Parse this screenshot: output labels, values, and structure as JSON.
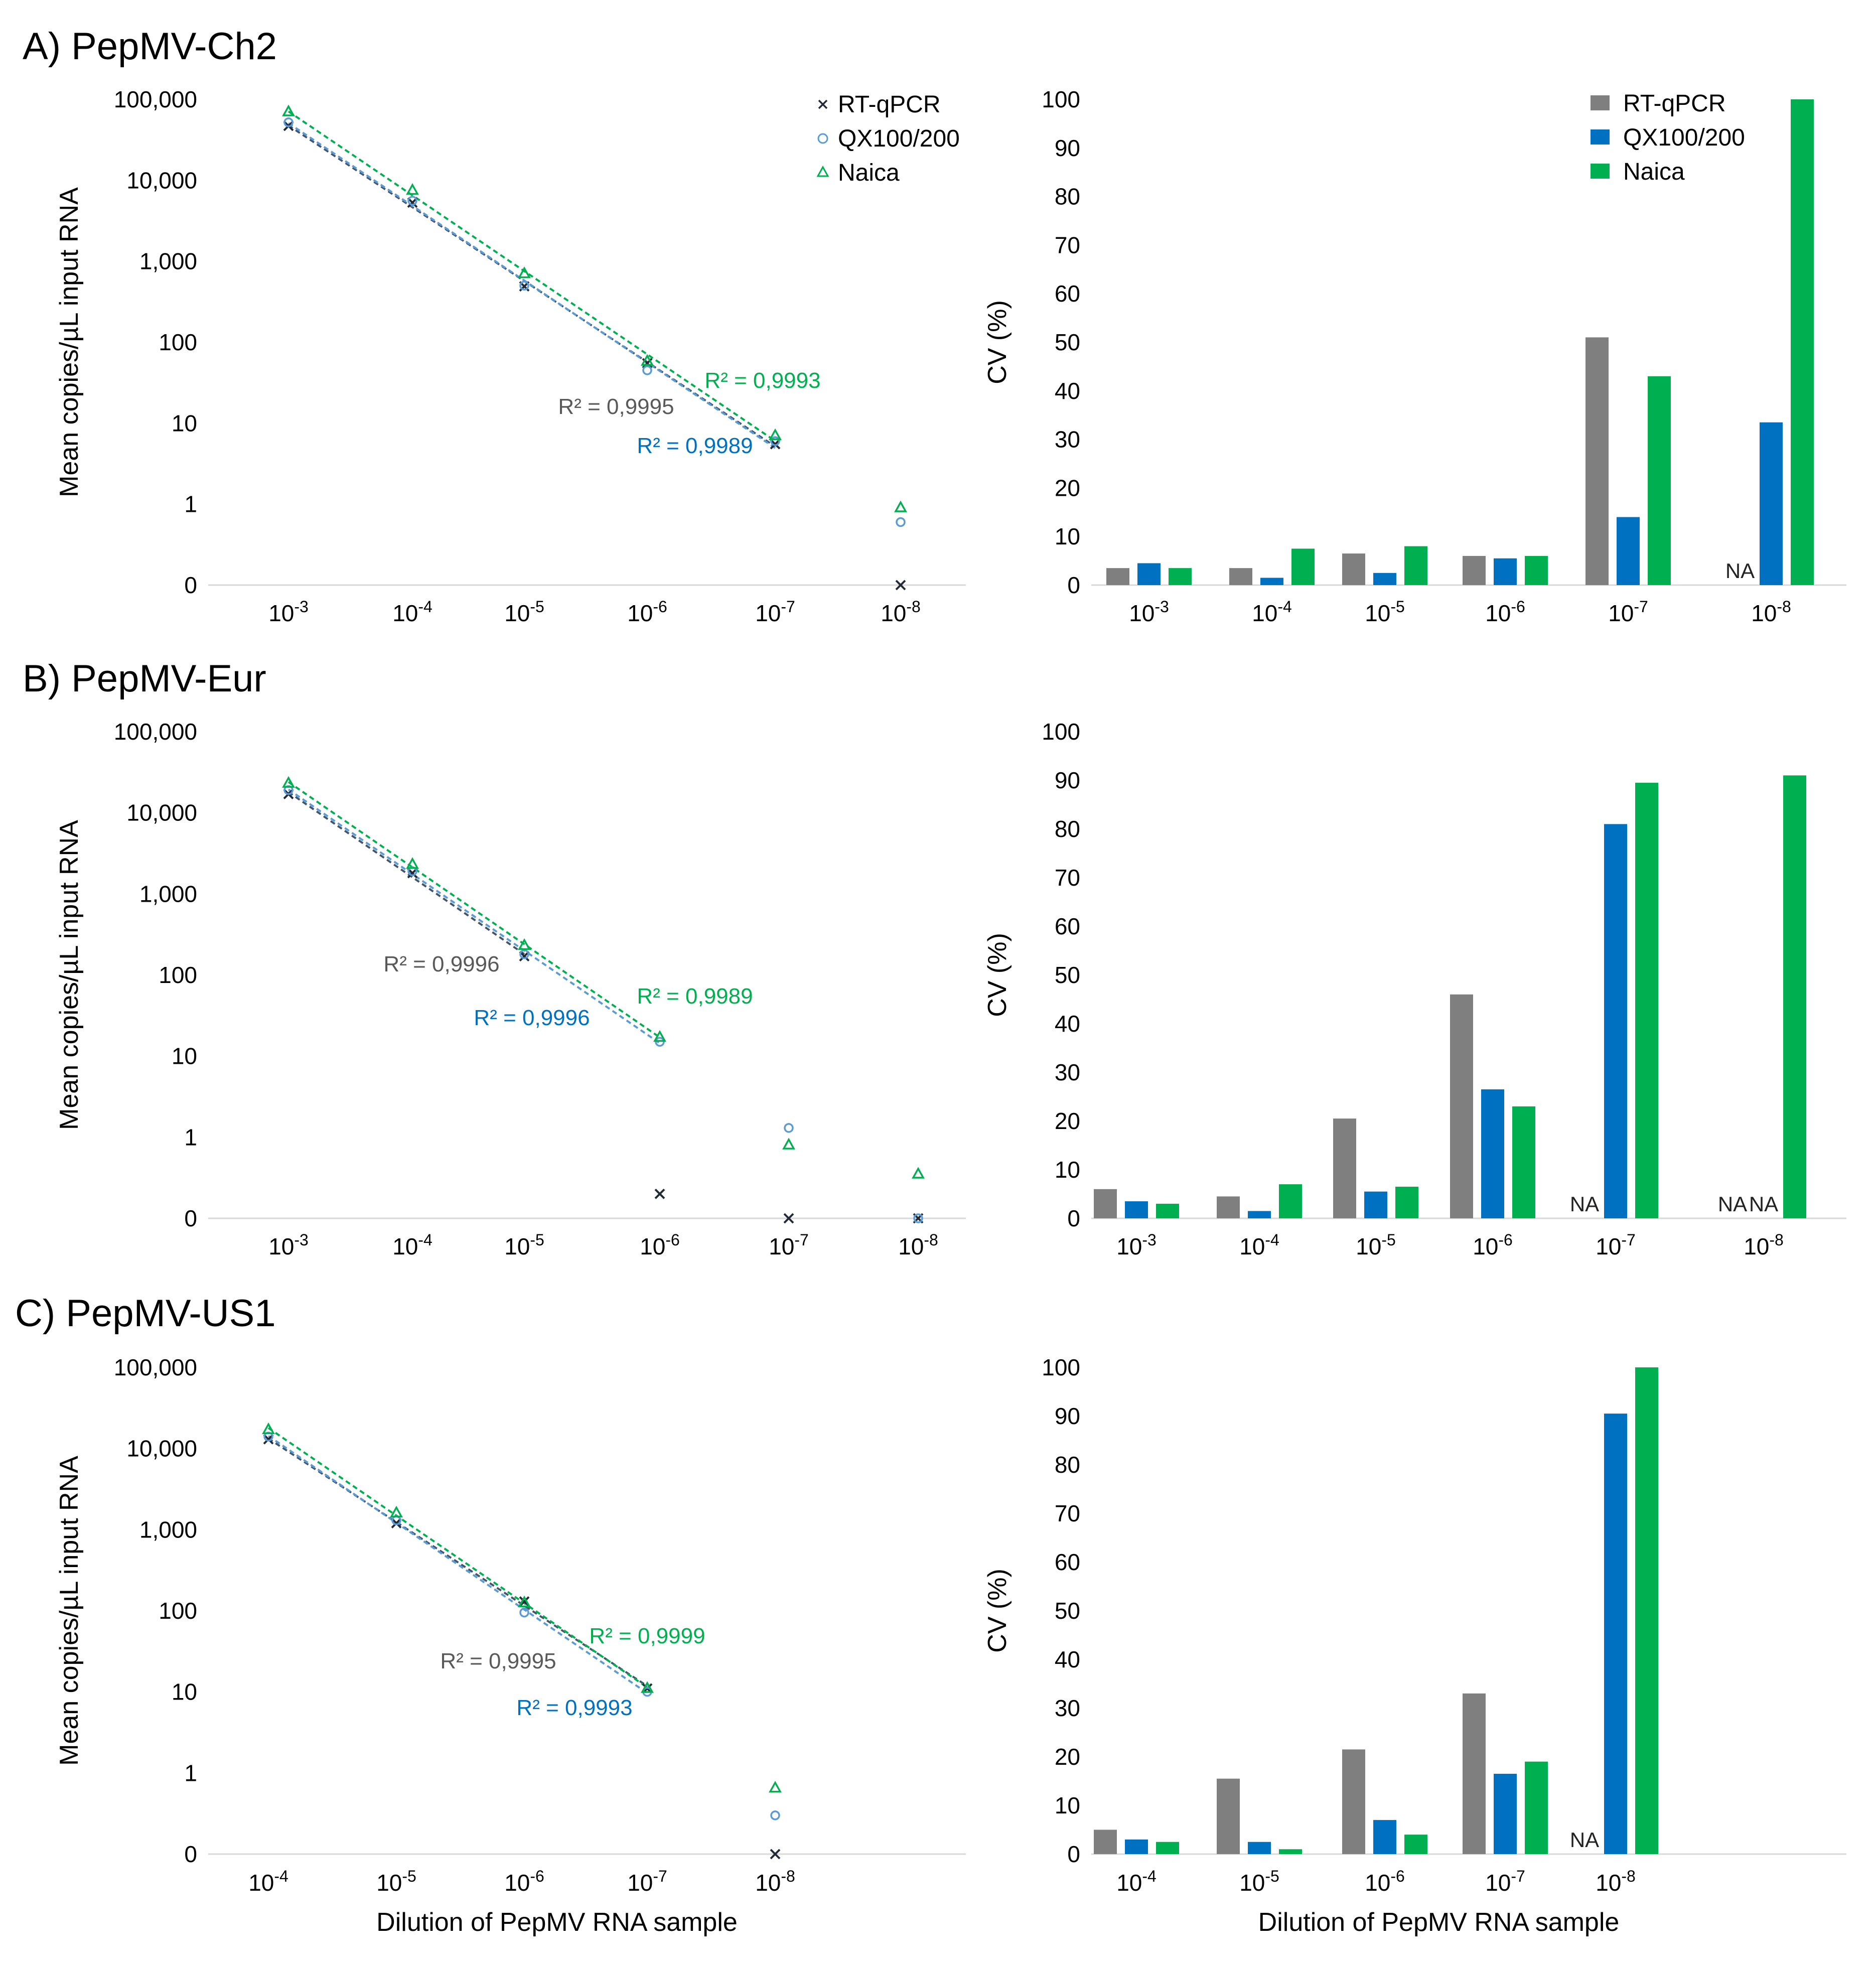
{
  "figure": {
    "xlabel": "Dilution of PepMV RNA sample",
    "legend": [
      {
        "name": "RT-qPCR",
        "color": "#7f7f7f"
      },
      {
        "name": "QX100/200",
        "color": "#0070c0"
      },
      {
        "name": "Naica",
        "color": "#00b050"
      }
    ]
  },
  "chart_data": [
    {
      "panel": "A) PepMV-Ch2",
      "type": "scatter",
      "yscale": "log",
      "ylabel": "Mean copies/µL input RNA",
      "yticks": [
        "100,000",
        "10,000",
        "1,000",
        "100",
        "10",
        "1",
        "0"
      ],
      "x": [
        "10-3",
        "10-4",
        "10-5",
        "10-6",
        "10-7",
        "10-8"
      ],
      "series": [
        {
          "name": "RT-qPCR",
          "marker": "x",
          "values": [
            47000,
            5300,
            490,
            55,
            5.5,
            0
          ]
        },
        {
          "name": "QX100/200",
          "marker": "o",
          "values": [
            52000,
            5600,
            500,
            45,
            6,
            0.6
          ]
        },
        {
          "name": "Naica",
          "marker": "triangle",
          "values": [
            70000,
            7500,
            700,
            58,
            7,
            0.9
          ]
        }
      ],
      "r2": [
        {
          "series": "RT-qPCR",
          "text": "R² = 0,9995"
        },
        {
          "series": "QX100/200",
          "text": "R² = 0,9989"
        },
        {
          "series": "Naica",
          "text": "R² = 0,9993"
        }
      ]
    },
    {
      "panel": "A) PepMV-Ch2",
      "type": "bar",
      "ylabel": "CV (%)",
      "ylim": [
        0,
        100
      ],
      "categories": [
        "10-3",
        "10-4",
        "10-5",
        "10-6",
        "10-7",
        "10-8"
      ],
      "series": [
        {
          "name": "RT-qPCR",
          "values": [
            3.5,
            3.5,
            6.5,
            6,
            51,
            null
          ]
        },
        {
          "name": "QX100/200",
          "values": [
            4.5,
            1.5,
            2.5,
            5.5,
            14,
            33.5
          ]
        },
        {
          "name": "Naica",
          "values": [
            3.5,
            7.5,
            8,
            6,
            43,
            100
          ]
        }
      ],
      "na_labels": [
        "NA"
      ]
    },
    {
      "panel": "B) PepMV-Eur",
      "type": "scatter",
      "yscale": "log",
      "ylabel": "Mean copies/µL input RNA",
      "yticks": [
        "100,000",
        "10,000",
        "1,000",
        "100",
        "10",
        "1",
        "0"
      ],
      "x": [
        "10-3",
        "10-4",
        "10-5",
        "10-6",
        "10-7",
        "10-8"
      ],
      "series": [
        {
          "name": "RT-qPCR",
          "marker": "x",
          "values": [
            17000,
            1800,
            170,
            0.2,
            0,
            0
          ]
        },
        {
          "name": "QX100/200",
          "marker": "o",
          "values": [
            19000,
            1900,
            180,
            15,
            1.3,
            0
          ]
        },
        {
          "name": "Naica",
          "marker": "triangle",
          "values": [
            23000,
            2300,
            230,
            17,
            0.8,
            0.35
          ]
        }
      ],
      "r2": [
        {
          "series": "RT-qPCR",
          "text": "R² = 0,9996"
        },
        {
          "series": "QX100/200",
          "text": "R² = 0,9996"
        },
        {
          "series": "Naica",
          "text": "R² = 0,9989"
        }
      ]
    },
    {
      "panel": "B) PepMV-Eur",
      "type": "bar",
      "ylabel": "CV (%)",
      "ylim": [
        0,
        100
      ],
      "categories": [
        "10-3",
        "10-4",
        "10-5",
        "10-6",
        "10-7",
        "10-8"
      ],
      "series": [
        {
          "name": "RT-qPCR",
          "values": [
            6,
            4.5,
            20.5,
            46,
            null,
            null
          ]
        },
        {
          "name": "QX100/200",
          "values": [
            3.5,
            1.5,
            5.5,
            26.5,
            81,
            null
          ]
        },
        {
          "name": "Naica",
          "values": [
            3,
            7,
            6.5,
            23,
            89.5,
            91
          ]
        }
      ],
      "na_labels": [
        "NA",
        "NA",
        "NA"
      ]
    },
    {
      "panel": "C) PepMV-US1",
      "type": "scatter",
      "yscale": "log",
      "ylabel": "Mean copies/µL input RNA",
      "yticks": [
        "100,000",
        "10,000",
        "1,000",
        "100",
        "10",
        "1",
        "0"
      ],
      "x": [
        "10-4",
        "10-5",
        "10-6",
        "10-7",
        "10-8"
      ],
      "series": [
        {
          "name": "RT-qPCR",
          "marker": "x",
          "values": [
            13000,
            1200,
            130,
            11,
            0
          ]
        },
        {
          "name": "QX100/200",
          "marker": "o",
          "values": [
            14000,
            1300,
            95,
            10,
            0.3
          ]
        },
        {
          "name": "Naica",
          "marker": "triangle",
          "values": [
            17000,
            1600,
            125,
            11,
            0.65
          ]
        }
      ],
      "r2": [
        {
          "series": "RT-qPCR",
          "text": "R² = 0,9995"
        },
        {
          "series": "QX100/200",
          "text": "R² = 0,9993"
        },
        {
          "series": "Naica",
          "text": "R² = 0,9999"
        }
      ]
    },
    {
      "panel": "C) PepMV-US1",
      "type": "bar",
      "ylabel": "CV (%)",
      "ylim": [
        0,
        100
      ],
      "categories": [
        "10-4",
        "10-5",
        "10-6",
        "10-7",
        "10-8"
      ],
      "series": [
        {
          "name": "RT-qPCR",
          "values": [
            5,
            15.5,
            21.5,
            33,
            null
          ]
        },
        {
          "name": "QX100/200",
          "values": [
            3,
            2.5,
            7,
            16.5,
            90.5
          ]
        },
        {
          "name": "Naica",
          "values": [
            2.5,
            1,
            4,
            19,
            100
          ]
        }
      ],
      "na_labels": [
        "NA"
      ]
    }
  ]
}
